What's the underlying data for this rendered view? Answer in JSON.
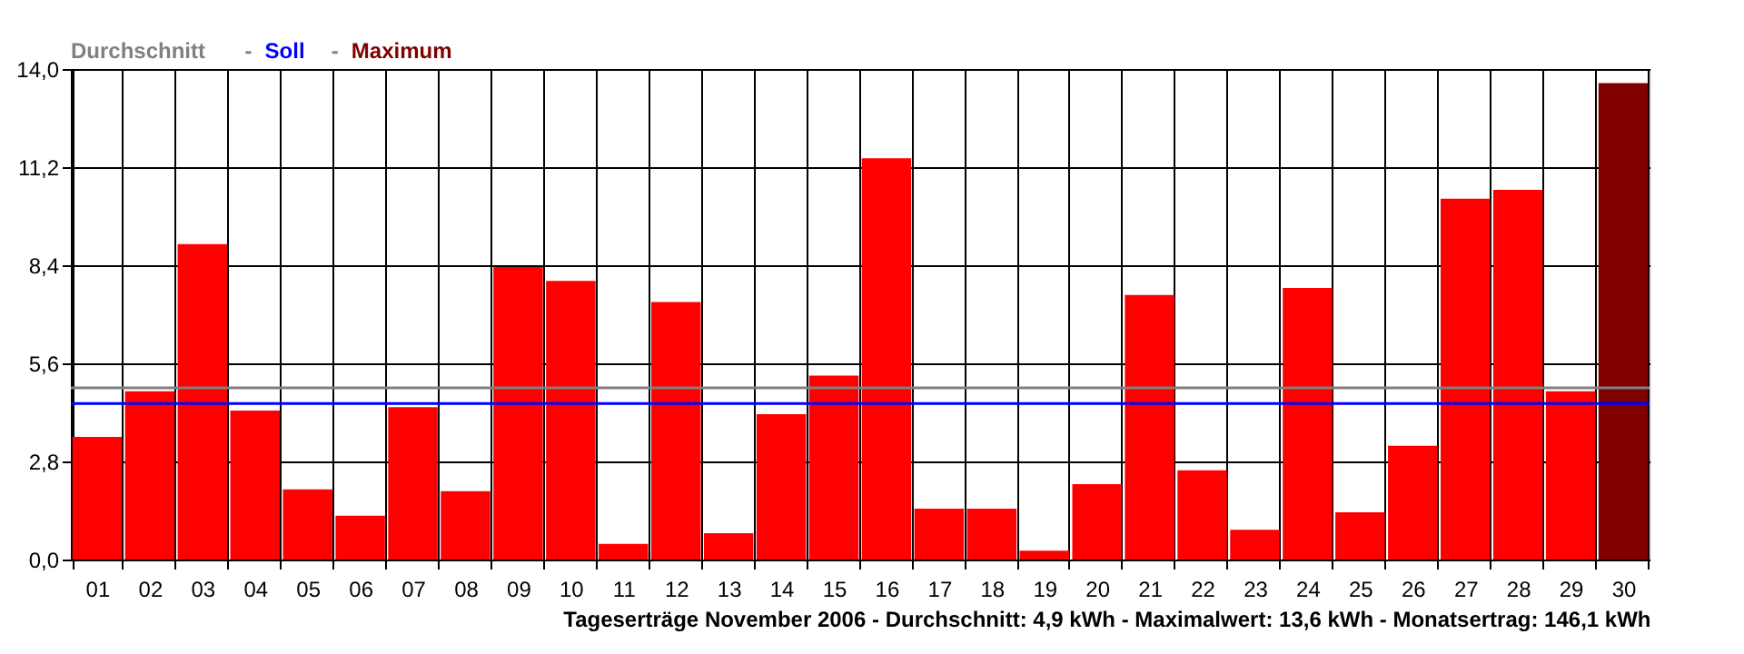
{
  "chart_data": {
    "type": "bar",
    "title": "Tageserträge November 2006 - Durchschnitt: 4,9 kWh - Maximalwert: 13,6 kWh - Monatsertrag: 146,1 kWh",
    "categories": [
      "01",
      "02",
      "03",
      "04",
      "05",
      "06",
      "07",
      "08",
      "09",
      "10",
      "11",
      "12",
      "13",
      "14",
      "15",
      "16",
      "17",
      "18",
      "19",
      "20",
      "21",
      "22",
      "23",
      "24",
      "25",
      "26",
      "27",
      "28",
      "29",
      "30"
    ],
    "stacked": true,
    "series": [
      {
        "color": "#ff0000",
        "values": [
          3.5,
          4.8,
          9.0,
          4.25,
          2.0,
          1.25,
          4.35,
          1.95,
          8.35,
          7.95,
          0.45,
          7.35,
          0.75,
          4.15,
          5.25,
          11.45,
          1.45,
          1.45,
          0.25,
          2.15,
          7.55,
          2.55,
          0.85,
          7.75,
          1.35,
          3.25,
          10.3,
          10.55,
          4.8,
          null
        ]
      },
      {
        "name": "Maximum",
        "color": "#800000",
        "values": [
          null,
          null,
          null,
          null,
          null,
          null,
          null,
          null,
          null,
          null,
          null,
          null,
          null,
          null,
          null,
          null,
          null,
          null,
          null,
          null,
          null,
          null,
          null,
          null,
          null,
          null,
          null,
          null,
          null,
          13.6
        ]
      }
    ],
    "ylim": [
      0,
      14
    ],
    "yticks": [
      {
        "value": 0,
        "label": "0,0"
      },
      {
        "value": 2.8,
        "label": "2,8"
      },
      {
        "value": 5.6,
        "label": "5,6"
      },
      {
        "value": 8.4,
        "label": "8,4"
      },
      {
        "value": 11.2,
        "label": "11,2"
      },
      {
        "value": 14,
        "label": "14,0"
      }
    ],
    "ref_lines": [
      {
        "axis": "y",
        "value": 4.9,
        "label": "Durchschnitt",
        "color": "#808080"
      },
      {
        "axis": "y",
        "value": 4.45,
        "label": "Soll",
        "color": "#0000ff"
      }
    ],
    "annotations": [
      "-",
      "-"
    ],
    "grid": true,
    "legend": "top left"
  }
}
